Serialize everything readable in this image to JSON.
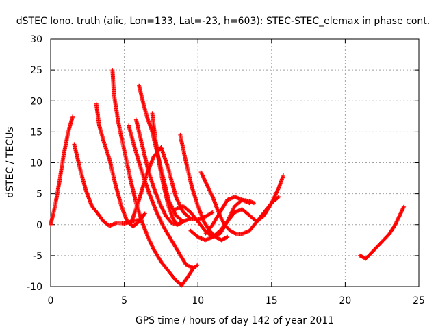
{
  "chart_data": {
    "type": "scatter",
    "title": "dSTEC Iono. truth (alic, Lon=133, Lat=-23, h=603): STEC-STEC_elemax in phase cont.",
    "xlabel": "GPS time / hours of day 142 of year 2011",
    "ylabel": "dSTEC  / TECUs",
    "xlim": [
      0,
      25
    ],
    "ylim": [
      -10,
      30
    ],
    "xticks": [
      0,
      5,
      10,
      15,
      20,
      25
    ],
    "yticks": [
      -10,
      -5,
      0,
      5,
      10,
      15,
      20,
      25,
      30
    ],
    "grid": true,
    "marker": "plus",
    "color": "#ff0000",
    "series": [
      {
        "x": [
          0.0,
          0.3,
          0.6,
          0.9,
          1.2,
          1.5
        ],
        "y": [
          0.0,
          3.0,
          7.0,
          11.5,
          15.0,
          17.5
        ]
      },
      {
        "x": [
          1.6,
          2.0,
          2.4,
          2.8,
          3.2,
          3.6,
          4.0,
          4.5,
          5.0,
          5.5,
          6.0
        ],
        "y": [
          13.0,
          9.0,
          5.5,
          3.0,
          1.8,
          0.5,
          -0.2,
          0.3,
          0.2,
          0.5,
          0.8
        ]
      },
      {
        "x": [
          3.1,
          3.3,
          3.6,
          4.0,
          4.4,
          4.8,
          5.2,
          5.6,
          6.0,
          6.4
        ],
        "y": [
          19.5,
          16.0,
          13.5,
          10.5,
          6.5,
          3.0,
          0.5,
          -0.3,
          0.5,
          1.8
        ]
      },
      {
        "x": [
          4.2,
          4.3,
          4.6,
          5.0,
          5.4,
          5.8,
          6.2,
          6.6,
          7.0,
          7.5,
          8.0,
          8.5,
          8.9
        ],
        "y": [
          25.0,
          21.0,
          16.5,
          12.0,
          7.5,
          3.5,
          0.5,
          -2.0,
          -4.0,
          -6.0,
          -7.5,
          -9.0,
          -9.8
        ]
      },
      {
        "x": [
          8.9,
          9.3,
          9.7,
          10.0
        ],
        "y": [
          -9.8,
          -8.5,
          -7.0,
          -6.5
        ]
      },
      {
        "x": [
          5.3,
          5.7,
          6.2,
          6.7,
          7.2,
          7.7,
          8.2,
          8.7,
          9.2,
          9.7
        ],
        "y": [
          16.0,
          12.5,
          8.5,
          5.0,
          2.0,
          -0.5,
          -2.5,
          -4.5,
          -6.5,
          -7.0
        ]
      },
      {
        "x": [
          6.0,
          6.3,
          6.6,
          6.9,
          7.2,
          7.6,
          8.0,
          8.5,
          9.0,
          9.5
        ],
        "y": [
          22.5,
          19.5,
          17.0,
          15.0,
          12.0,
          8.0,
          4.0,
          1.5,
          0.5,
          1.0
        ]
      },
      {
        "x": [
          5.8,
          6.2,
          6.6,
          7.0,
          7.4,
          7.8,
          8.2,
          8.6,
          9.0
        ],
        "y": [
          17.0,
          13.0,
          9.0,
          6.0,
          3.5,
          1.5,
          0.3,
          0.0,
          0.5
        ]
      },
      {
        "x": [
          6.9,
          7.1,
          7.4,
          7.7,
          8.0,
          8.3,
          8.6,
          9.0
        ],
        "y": [
          18.0,
          14.0,
          9.5,
          6.0,
          3.0,
          1.0,
          0.0,
          0.5
        ]
      },
      {
        "x": [
          5.5,
          6.0,
          6.5,
          7.0,
          7.5,
          8.0,
          8.5,
          9.0,
          9.5,
          10.0,
          10.5,
          11.0
        ],
        "y": [
          0.5,
          4.0,
          8.0,
          11.0,
          12.5,
          9.0,
          4.5,
          2.0,
          1.0,
          0.8,
          1.3,
          2.0
        ]
      },
      {
        "x": [
          8.8,
          9.2,
          9.6,
          10.0,
          10.4,
          10.8,
          11.2,
          11.6,
          12.0
        ],
        "y": [
          14.5,
          10.0,
          6.0,
          3.0,
          0.5,
          -1.0,
          -2.0,
          -2.5,
          -2.0
        ]
      },
      {
        "x": [
          8.5,
          9.0,
          9.5,
          10.0,
          10.5,
          11.0,
          11.5,
          12.0,
          12.5,
          13.0,
          13.5,
          13.8
        ],
        "y": [
          2.5,
          3.0,
          2.0,
          0.5,
          -1.0,
          -2.0,
          -1.5,
          0.5,
          3.0,
          4.0,
          3.8,
          3.5
        ]
      },
      {
        "x": [
          10.2,
          10.6,
          11.0,
          11.4,
          11.8,
          12.2,
          12.6,
          13.0,
          13.5,
          14.0,
          14.5,
          15.0,
          15.5,
          15.8
        ],
        "y": [
          8.5,
          6.5,
          4.5,
          2.0,
          0.0,
          -1.0,
          -1.5,
          -1.5,
          -1.0,
          0.5,
          2.0,
          3.5,
          6.0,
          8.0
        ]
      },
      {
        "x": [
          9.5,
          10.0,
          10.5,
          11.0,
          11.5,
          12.0,
          12.5,
          13.0,
          13.5,
          14.0,
          14.5,
          15.0,
          15.5
        ],
        "y": [
          -1.0,
          -2.0,
          -2.5,
          -2.0,
          -1.0,
          0.5,
          2.0,
          2.5,
          1.5,
          0.5,
          1.5,
          3.5,
          4.5
        ]
      },
      {
        "x": [
          10.5,
          11.0,
          11.5,
          12.0,
          12.5,
          13.0,
          13.5
        ],
        "y": [
          -1.5,
          0.0,
          2.0,
          4.0,
          4.5,
          4.0,
          3.5
        ]
      },
      {
        "x": [
          21.0,
          21.4,
          21.8,
          22.2,
          22.6,
          23.0,
          23.4,
          23.7,
          24.0
        ],
        "y": [
          -5.0,
          -5.5,
          -4.5,
          -3.5,
          -2.5,
          -1.5,
          0.0,
          1.5,
          3.0
        ]
      }
    ]
  }
}
